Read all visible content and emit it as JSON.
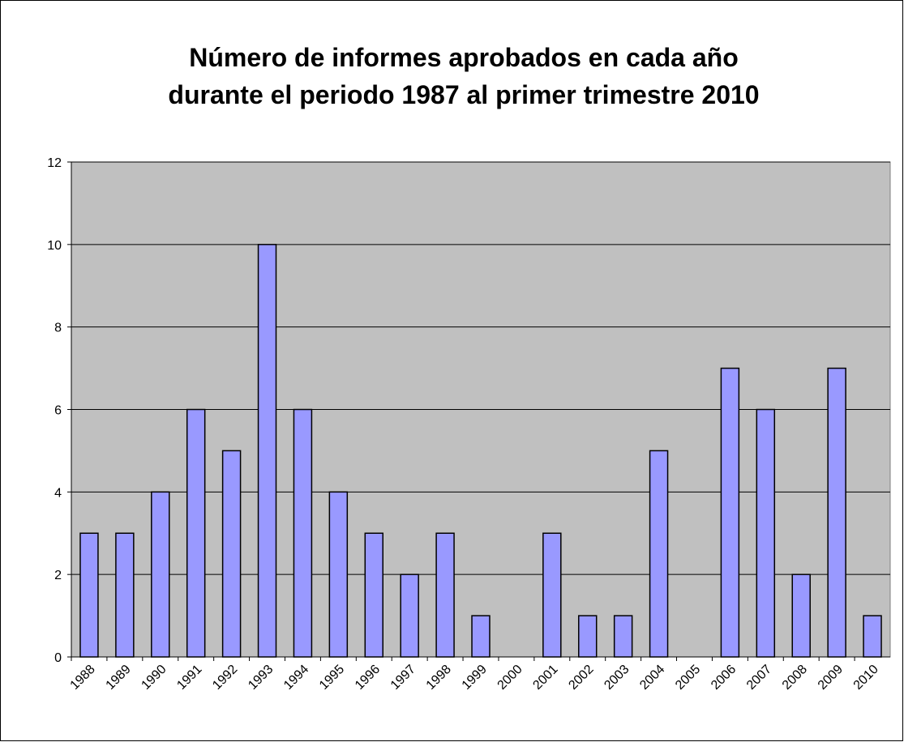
{
  "chart_data": {
    "type": "bar",
    "title": [
      "Número de informes aprobados en cada año",
      "durante el periodo 1987 al primer trimestre 2010"
    ],
    "categories": [
      "1988",
      "1989",
      "1990",
      "1991",
      "1992",
      "1993",
      "1994",
      "1995",
      "1996",
      "1997",
      "1998",
      "1999",
      "2000",
      "2001",
      "2002",
      "2003",
      "2004",
      "2005",
      "2006",
      "2007",
      "2008",
      "2009",
      "2010"
    ],
    "values": [
      3,
      3,
      4,
      6,
      5,
      10,
      6,
      4,
      3,
      2,
      3,
      1,
      0,
      3,
      1,
      1,
      5,
      0,
      7,
      6,
      2,
      7,
      1
    ],
    "color": "#9999ff",
    "ylim": [
      0,
      12
    ],
    "yticks": [
      0,
      2,
      4,
      6,
      8,
      10,
      12
    ],
    "grid": true
  }
}
